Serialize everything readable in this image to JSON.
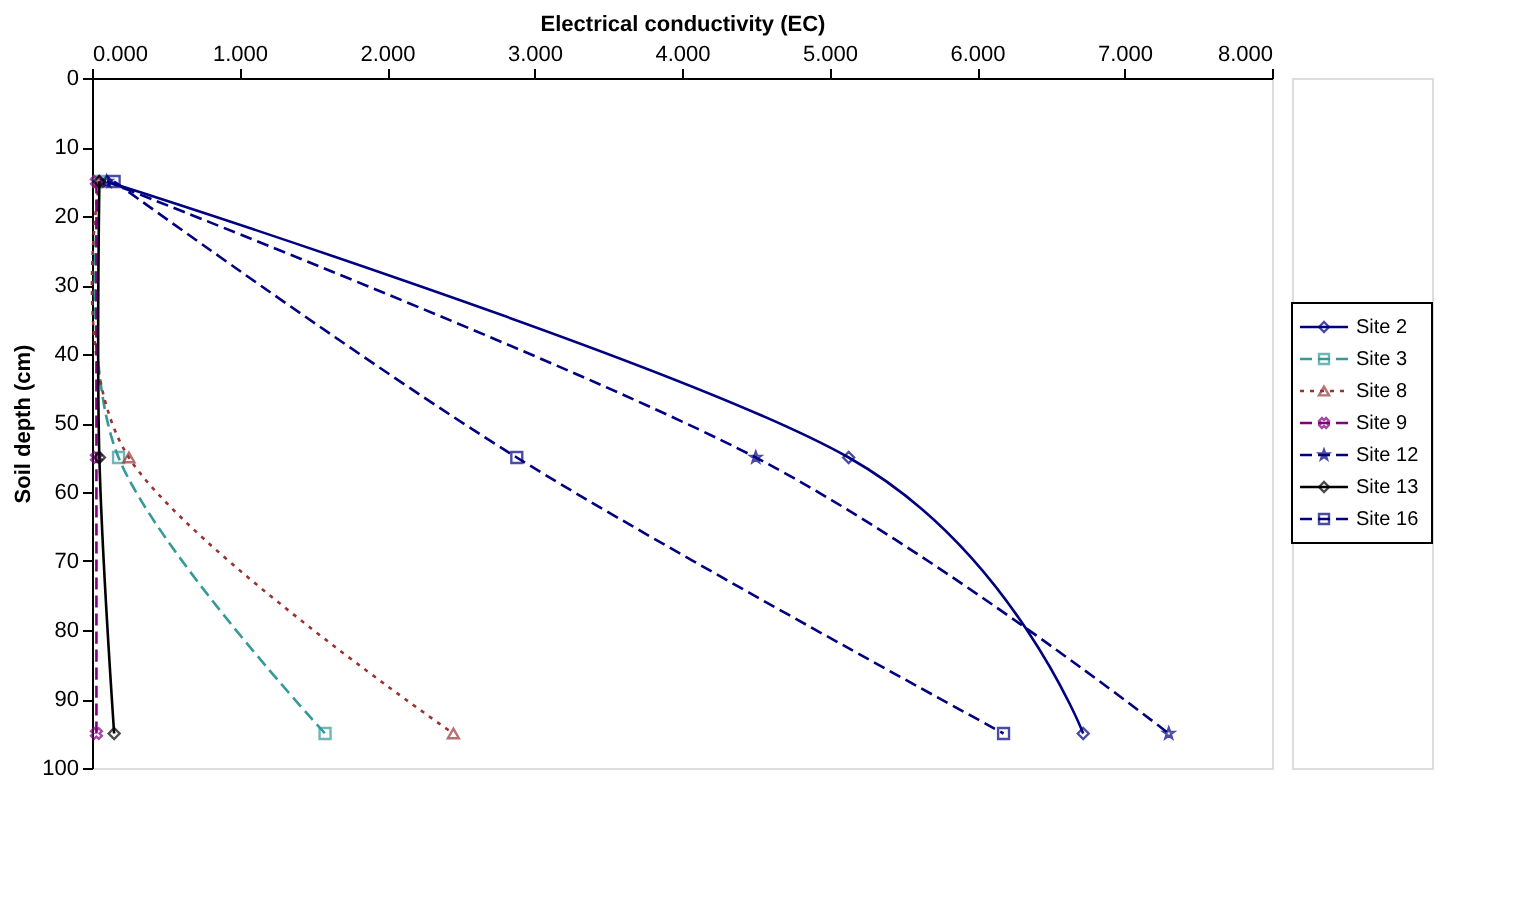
{
  "chart_data": {
    "type": "line",
    "xlabel": "Electrical conductivity (EC)",
    "ylabel": "Soil depth (cm)",
    "xlim": [
      0,
      8
    ],
    "xticks": [
      {
        "value": 0,
        "label": "0.000"
      },
      {
        "value": 1,
        "label": "1.000"
      },
      {
        "value": 2,
        "label": "2.000"
      },
      {
        "value": 3,
        "label": "3.000"
      },
      {
        "value": 4,
        "label": "4.000"
      },
      {
        "value": 5,
        "label": "5.000"
      },
      {
        "value": 6,
        "label": "6.000"
      },
      {
        "value": 7,
        "label": "7.000"
      },
      {
        "value": 8,
        "label": "8.000"
      }
    ],
    "ylim": [
      100,
      0
    ],
    "yticks": [
      0,
      10,
      20,
      30,
      40,
      50,
      60,
      70,
      80,
      90,
      100
    ],
    "legend": "right",
    "grid": false,
    "series": [
      {
        "name": "Site 2",
        "color": "#000080",
        "x": [
          0.1,
          5.13,
          6.72
        ],
        "values": [
          15,
          55,
          95
        ],
        "marker": "diamond",
        "line_style": "solid"
      },
      {
        "name": "Site 3",
        "color": "#339999",
        "x": [
          0.05,
          0.18,
          1.58
        ],
        "values": [
          15,
          55,
          95
        ],
        "marker": "square",
        "line_style": "dashed"
      },
      {
        "name": "Site 8",
        "color": "#993333",
        "x": [
          0.05,
          0.25,
          2.45
        ],
        "values": [
          15,
          55,
          95
        ],
        "marker": "triangle",
        "line_style": "dotted"
      },
      {
        "name": "Site 9",
        "color": "#800080",
        "x": [
          0.03,
          0.03,
          0.03
        ],
        "values": [
          15,
          55,
          95
        ],
        "marker": "cross",
        "line_style": "dashed"
      },
      {
        "name": "Site 12",
        "color": "#000080",
        "x": [
          0.1,
          4.5,
          7.3
        ],
        "values": [
          15,
          55,
          95
        ],
        "marker": "star",
        "line_style": "dashed"
      },
      {
        "name": "Site 13",
        "color": "#000000",
        "x": [
          0.05,
          0.05,
          0.15
        ],
        "values": [
          15,
          55,
          95
        ],
        "marker": "diamond",
        "line_style": "solid"
      },
      {
        "name": "Site 16",
        "color": "#000080",
        "x": [
          0.15,
          2.88,
          6.18
        ],
        "values": [
          15,
          55,
          95
        ],
        "marker": "square",
        "line_style": "dashed"
      }
    ]
  }
}
